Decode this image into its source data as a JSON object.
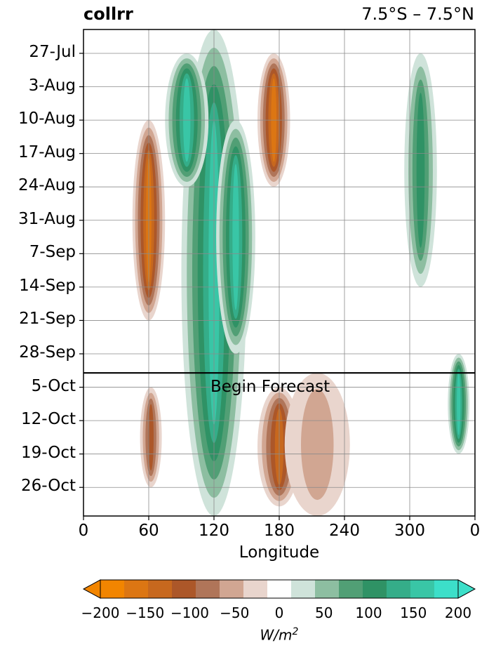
{
  "chart_data": {
    "type": "heatmap",
    "title": "collrr",
    "region": "7.5°S – 7.5°N",
    "xlabel": "Longitude",
    "x_ticks": [
      "0",
      "60",
      "120",
      "180",
      "240",
      "300",
      "0"
    ],
    "x_tick_values": [
      0,
      60,
      120,
      180,
      240,
      300,
      360
    ],
    "xlim": [
      0,
      360
    ],
    "y_ticks": [
      "27-Jul",
      "3-Aug",
      "10-Aug",
      "17-Aug",
      "24-Aug",
      "31-Aug",
      "7-Sep",
      "14-Sep",
      "21-Sep",
      "28-Sep",
      "5-Oct",
      "12-Oct",
      "19-Oct",
      "26-Oct"
    ],
    "ylim": [
      "2024-07-22",
      "2024-11-01"
    ],
    "forecast_start": "2024-10-02",
    "annotation": "Begin Forecast",
    "grid": true,
    "colorbar": {
      "label": "W/m^2",
      "ticks": [
        "−200",
        "−150",
        "−100",
        "−50",
        "0",
        "50",
        "100",
        "150",
        "200"
      ],
      "levels": [
        -200,
        -175,
        -150,
        -125,
        -100,
        -75,
        -50,
        -25,
        25,
        50,
        75,
        100,
        125,
        150,
        175,
        200
      ],
      "colors": [
        "#f28500",
        "#dc7613",
        "#c7681e",
        "#ac5729",
        "#b07559",
        "#d1a692",
        "#e9d5cd",
        "#ffffff",
        "#cfe3da",
        "#8dbea1",
        "#519f75",
        "#2f9265",
        "#35ad89",
        "#39c6a6",
        "#3cdfc9"
      ],
      "extend": "both"
    },
    "features": [
      {
        "kind": "enhanced",
        "lon": 120,
        "lon_width": 30,
        "start": "2024-07-22",
        "end": "2024-11-01",
        "peak": 200
      },
      {
        "kind": "enhanced",
        "lon": 95,
        "lon_width": 20,
        "start": "2024-07-27",
        "end": "2024-08-24",
        "peak": 200
      },
      {
        "kind": "enhanced",
        "lon": 140,
        "lon_width": 18,
        "start": "2024-08-10",
        "end": "2024-09-28",
        "peak": 150
      },
      {
        "kind": "enhanced",
        "lon": 345,
        "lon_width": 10,
        "start": "2024-09-28",
        "end": "2024-10-19",
        "peak": 150
      },
      {
        "kind": "enhanced",
        "lon": 310,
        "lon_width": 15,
        "start": "2024-07-27",
        "end": "2024-09-14",
        "peak": 100
      },
      {
        "kind": "suppressed",
        "lon": 60,
        "lon_width": 15,
        "start": "2024-08-10",
        "end": "2024-09-21",
        "peak": -150
      },
      {
        "kind": "suppressed",
        "lon": 175,
        "lon_width": 15,
        "start": "2024-07-27",
        "end": "2024-08-24",
        "peak": -175
      },
      {
        "kind": "suppressed",
        "lon": 180,
        "lon_width": 20,
        "start": "2024-10-05",
        "end": "2024-10-30",
        "peak": -125
      },
      {
        "kind": "suppressed",
        "lon": 62,
        "lon_width": 10,
        "start": "2024-10-05",
        "end": "2024-10-26",
        "peak": -100
      },
      {
        "kind": "suppressed",
        "lon": 215,
        "lon_width": 30,
        "start": "2024-10-02",
        "end": "2024-11-01",
        "peak": -50
      }
    ]
  }
}
